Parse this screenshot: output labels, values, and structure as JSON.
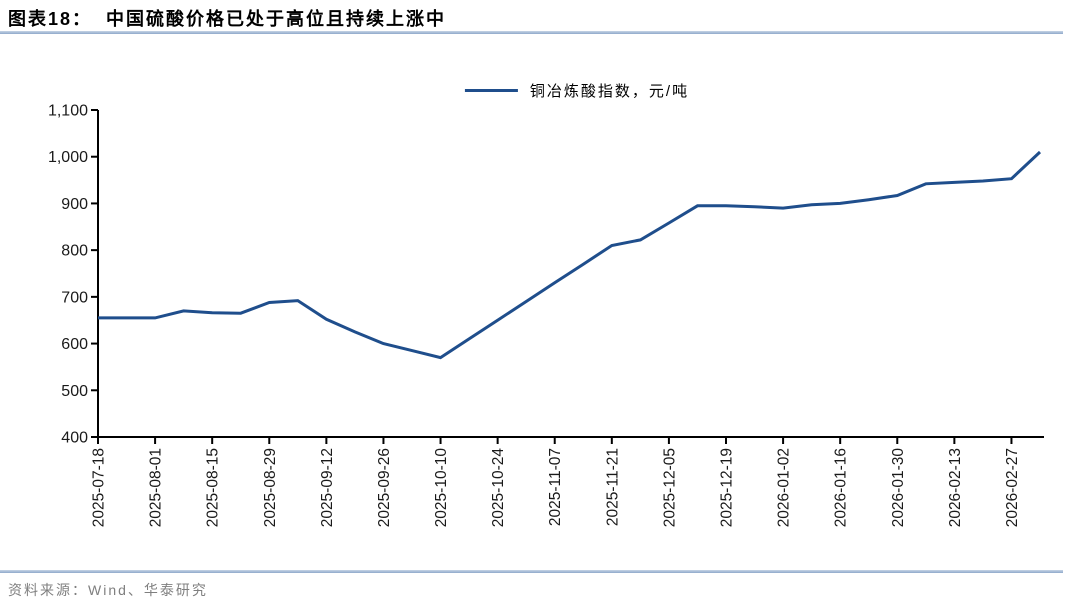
{
  "header": {
    "title": "图表18：  中国硫酸价格已处于高位且持续上涨中"
  },
  "legend": {
    "label": "铜冶炼酸指数，元/吨"
  },
  "footer": {
    "source": "资料来源：Wind、华泰研究"
  },
  "colors": {
    "line": "#1F4E8C",
    "axis": "#000000",
    "tick_label": "#1a1a1a",
    "divider_light": "#c6d4e6",
    "divider_dark": "#8fa9cb",
    "source_text": "#7f7f7f"
  },
  "chart_data": {
    "type": "line",
    "title": "中国硫酸价格已处于高位且持续上涨中",
    "series_name": "铜冶炼酸指数，元/吨",
    "xlabel": "",
    "ylabel": "元/吨",
    "ylim": [
      400,
      1100
    ],
    "ytick_step": 100,
    "grid": false,
    "legend_position": "top-center",
    "x": [
      "2025-07-18",
      "2025-07-25",
      "2025-08-01",
      "2025-08-08",
      "2025-08-15",
      "2025-08-22",
      "2025-08-29",
      "2025-09-05",
      "2025-09-12",
      "2025-09-19",
      "2025-09-26",
      "2025-10-03",
      "2025-10-10",
      "2025-10-17",
      "2025-10-24",
      "2025-10-31",
      "2025-11-07",
      "2025-11-14",
      "2025-11-21",
      "2025-11-28",
      "2025-12-05",
      "2025-12-12",
      "2025-12-19",
      "2025-12-26",
      "2026-01-02",
      "2026-01-09",
      "2026-01-16",
      "2026-01-23",
      "2026-01-30",
      "2026-02-06",
      "2026-02-13",
      "2026-02-20",
      "2026-02-27",
      "2026-03-06"
    ],
    "values": [
      655,
      655,
      655,
      670,
      666,
      665,
      688,
      692,
      652,
      625,
      600,
      585,
      570,
      610,
      650,
      690,
      730,
      770,
      810,
      822,
      858,
      895,
      895,
      893,
      890,
      897,
      900,
      908,
      917,
      942,
      945,
      948,
      953,
      1010
    ],
    "x_tick_labels": [
      "2025-07-18",
      "2025-08-01",
      "2025-08-15",
      "2025-08-29",
      "2025-09-12",
      "2025-09-26",
      "2025-10-10",
      "2025-10-24",
      "2025-11-07",
      "2025-11-21",
      "2025-12-05",
      "2025-12-19",
      "2026-01-02",
      "2026-01-16",
      "2026-01-30",
      "2026-02-13",
      "2026-02-27"
    ]
  }
}
